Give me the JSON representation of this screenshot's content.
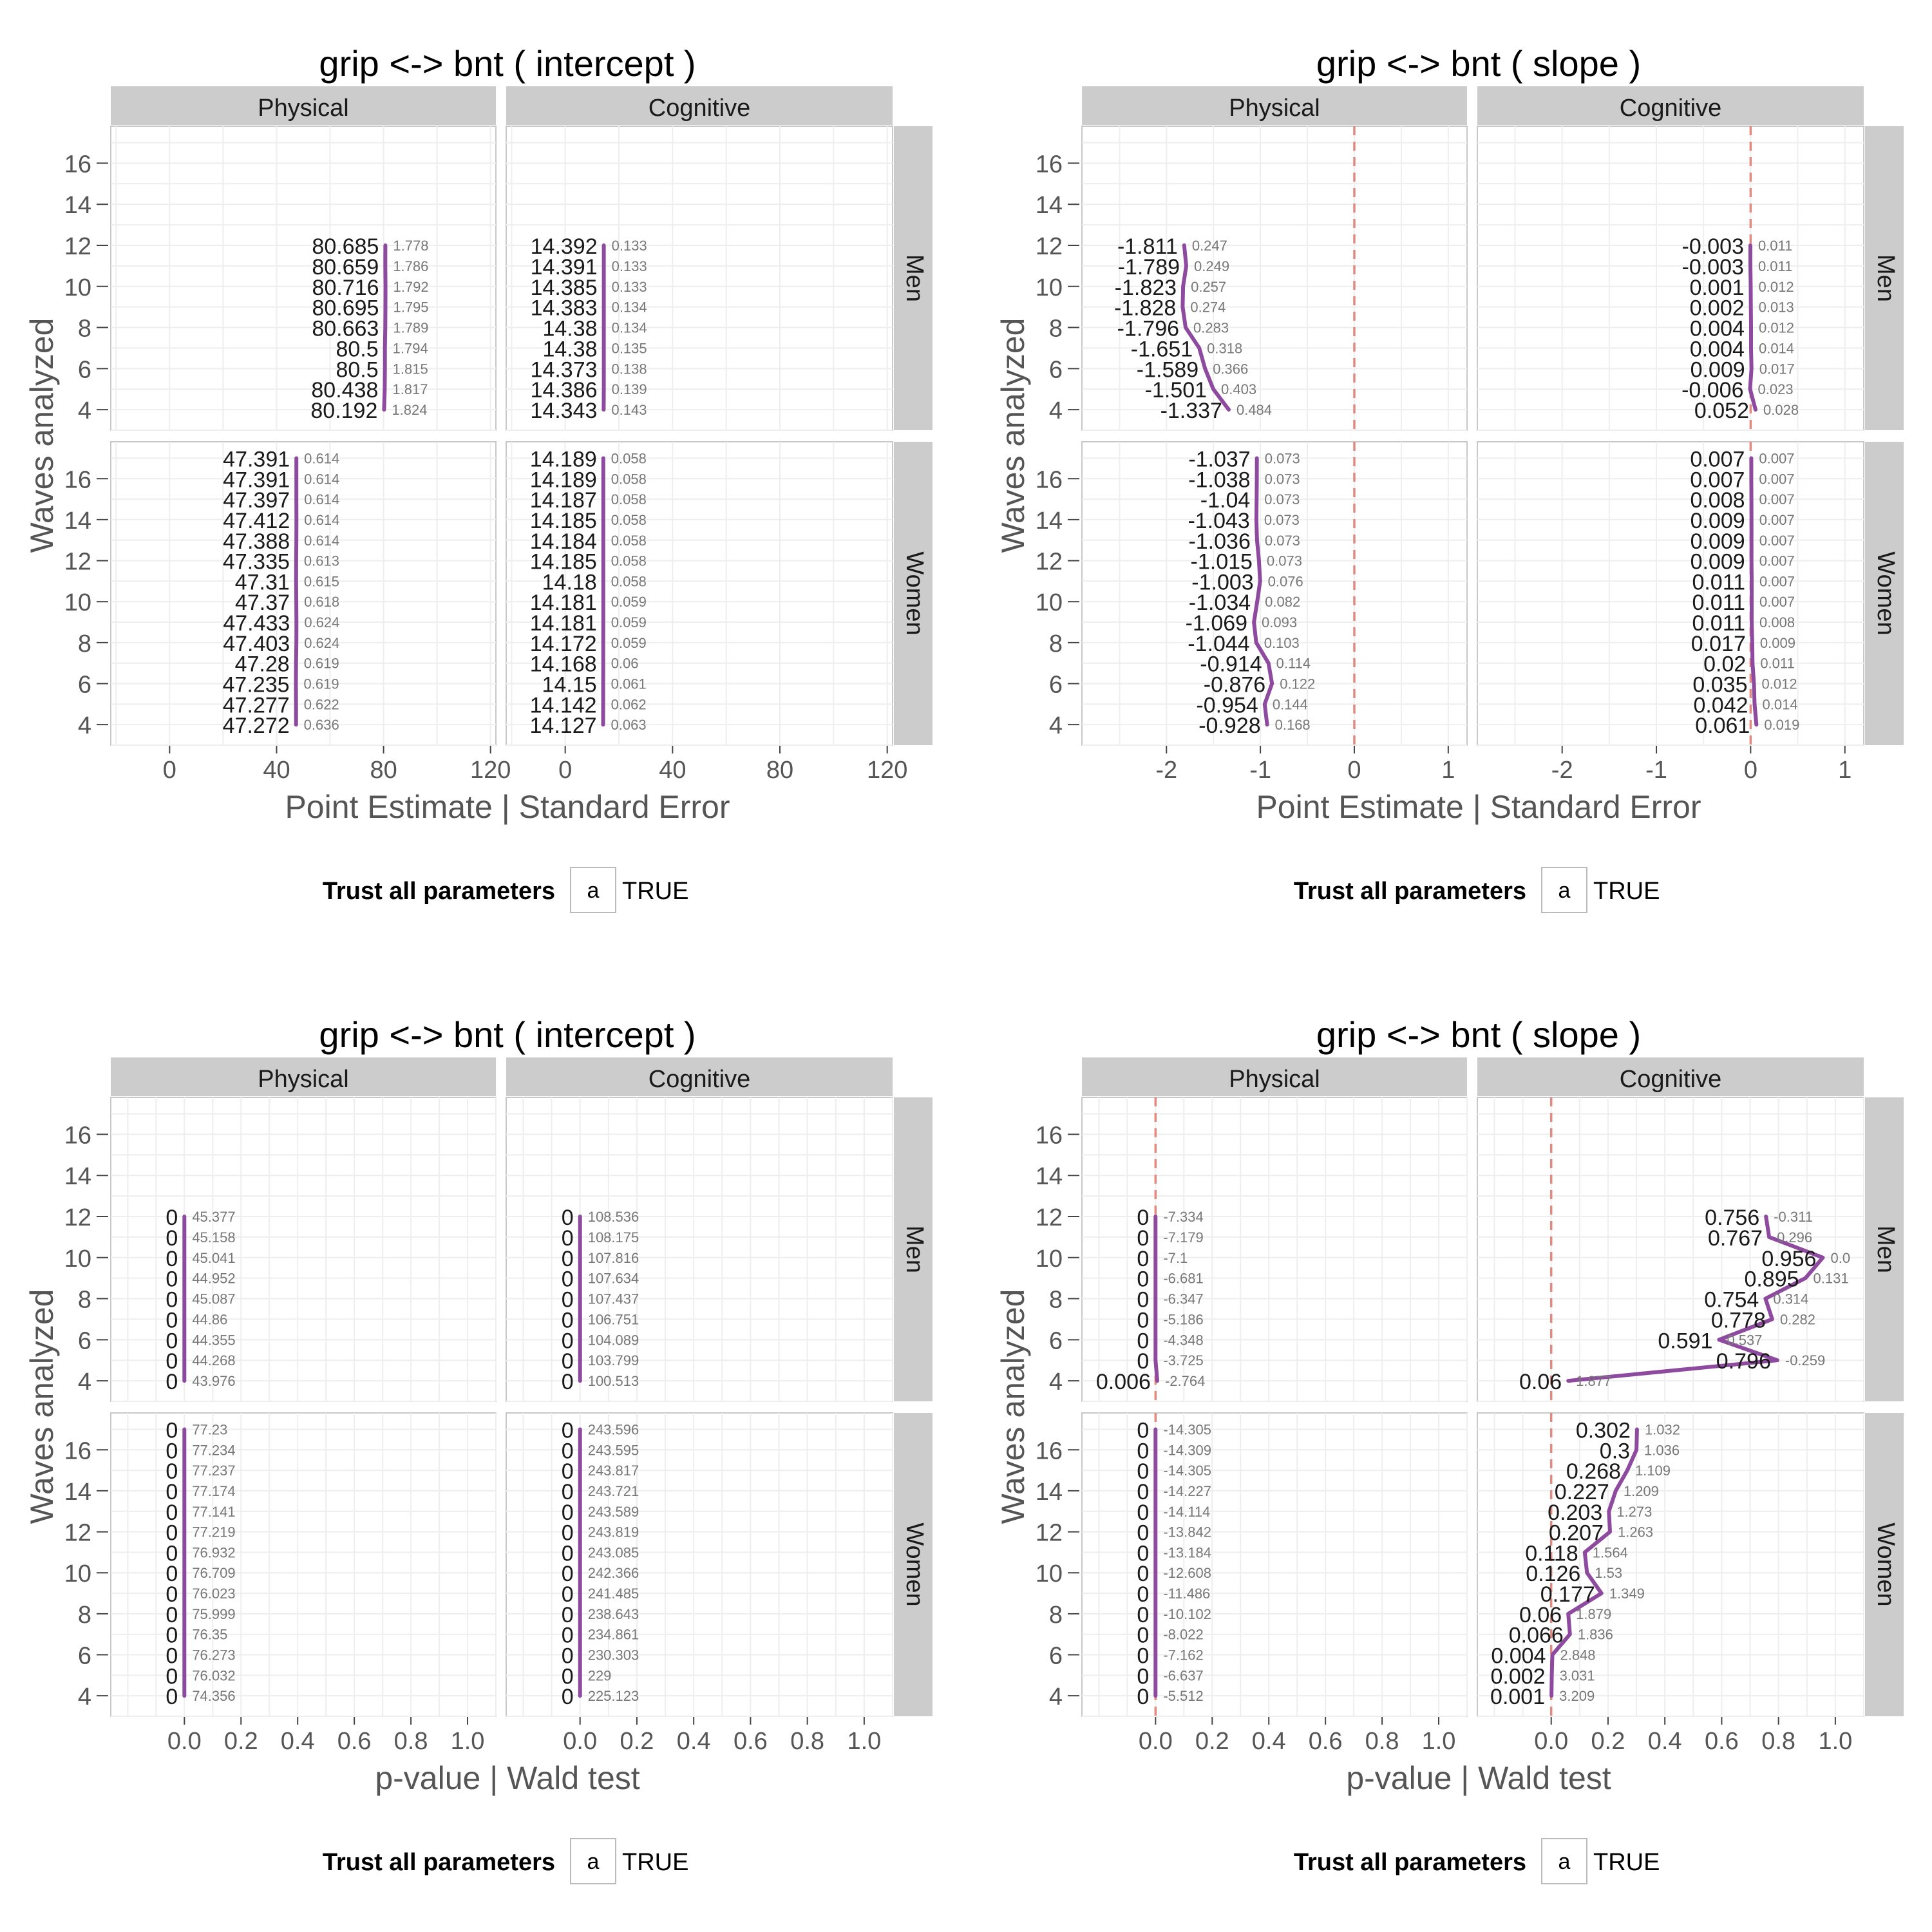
{
  "y_axis_label": "Waves analyzed",
  "legend": {
    "title": "Trust all parameters",
    "key_glyph": "a",
    "label": "TRUE"
  },
  "colors": {
    "line": "#8e4a9e",
    "strip": "#cccccc",
    "panel_border": "#c8c8c8",
    "grid": "#eeeeee",
    "ref_line": "#e08a80",
    "axis_text": "#555555",
    "se_text": "#777777"
  },
  "y_ticks": [
    4,
    6,
    8,
    10,
    12,
    14,
    16
  ],
  "y_range": [
    3,
    17.8
  ],
  "row_labels": [
    "Men",
    "Women"
  ],
  "col_labels": [
    "Physical",
    "Cognitive"
  ],
  "chart_data": [
    {
      "type": "line",
      "title": "grip <-> bnt ( intercept )",
      "xlabel": "Point Estimate | Standard Error",
      "x_range": [
        -22,
        122
      ],
      "x_ticks": [
        0,
        40,
        80,
        120
      ],
      "x_tick_labels": [
        "0",
        "40",
        "80",
        "120"
      ],
      "ref_line": null,
      "panels": [
        {
          "row": "Men",
          "col": "Physical",
          "waves": [
            12,
            11,
            10,
            9,
            8,
            7,
            6,
            5,
            4
          ],
          "values": [
            80.685,
            80.659,
            80.716,
            80.695,
            80.663,
            80.5,
            80.5,
            80.438,
            80.192
          ],
          "value_labels": [
            "80.685",
            "80.659",
            "80.716",
            "80.695",
            "80.663",
            "80.5",
            "80.5",
            "80.438",
            "80.192"
          ],
          "secondary_labels": [
            "1.778",
            "1.786",
            "1.792",
            "1.795",
            "1.789",
            "1.794",
            "1.815",
            "1.817",
            "1.824"
          ]
        },
        {
          "row": "Men",
          "col": "Cognitive",
          "waves": [
            12,
            11,
            10,
            9,
            8,
            7,
            6,
            5,
            4
          ],
          "values": [
            14.392,
            14.391,
            14.385,
            14.383,
            14.38,
            14.38,
            14.373,
            14.386,
            14.343
          ],
          "value_labels": [
            "14.392",
            "14.391",
            "14.385",
            "14.383",
            "14.38",
            "14.38",
            "14.373",
            "14.386",
            "14.343"
          ],
          "secondary_labels": [
            "0.133",
            "0.133",
            "0.133",
            "0.134",
            "0.134",
            "0.135",
            "0.138",
            "0.139",
            "0.143"
          ]
        },
        {
          "row": "Women",
          "col": "Physical",
          "waves": [
            17,
            16,
            15,
            14,
            13,
            12,
            11,
            10,
            9,
            8,
            7,
            6,
            5,
            4
          ],
          "values": [
            47.391,
            47.391,
            47.397,
            47.412,
            47.388,
            47.335,
            47.31,
            47.37,
            47.433,
            47.403,
            47.28,
            47.235,
            47.277,
            47.272
          ],
          "value_labels": [
            "47.391",
            "47.391",
            "47.397",
            "47.412",
            "47.388",
            "47.335",
            "47.31",
            "47.37",
            "47.433",
            "47.403",
            "47.28",
            "47.235",
            "47.277",
            "47.272"
          ],
          "secondary_labels": [
            "0.614",
            "0.614",
            "0.614",
            "0.614",
            "0.614",
            "0.613",
            "0.615",
            "0.618",
            "0.624",
            "0.624",
            "0.619",
            "0.619",
            "0.622",
            "0.636"
          ]
        },
        {
          "row": "Women",
          "col": "Cognitive",
          "waves": [
            17,
            16,
            15,
            14,
            13,
            12,
            11,
            10,
            9,
            8,
            7,
            6,
            5,
            4
          ],
          "values": [
            14.189,
            14.189,
            14.187,
            14.185,
            14.184,
            14.185,
            14.18,
            14.181,
            14.181,
            14.172,
            14.168,
            14.15,
            14.142,
            14.127
          ],
          "value_labels": [
            "14.189",
            "14.189",
            "14.187",
            "14.185",
            "14.184",
            "14.185",
            "14.18",
            "14.181",
            "14.181",
            "14.172",
            "14.168",
            "14.15",
            "14.142",
            "14.127"
          ],
          "secondary_labels": [
            "0.058",
            "0.058",
            "0.058",
            "0.058",
            "0.058",
            "0.058",
            "0.058",
            "0.059",
            "0.059",
            "0.059",
            "0.06",
            "0.061",
            "0.062",
            "0.063"
          ]
        }
      ]
    },
    {
      "type": "line",
      "title": "grip <-> bnt ( slope )",
      "xlabel": "Point Estimate | Standard Error",
      "x_range": [
        -2.9,
        1.2
      ],
      "x_ticks": [
        -2,
        -1,
        0,
        1
      ],
      "x_tick_labels": [
        "-2",
        "-1",
        "0",
        "1"
      ],
      "ref_line": 0,
      "panels": [
        {
          "row": "Men",
          "col": "Physical",
          "waves": [
            12,
            11,
            10,
            9,
            8,
            7,
            6,
            5,
            4
          ],
          "values": [
            -1.811,
            -1.789,
            -1.823,
            -1.828,
            -1.796,
            -1.651,
            -1.589,
            -1.501,
            -1.337
          ],
          "value_labels": [
            "-1.811",
            "-1.789",
            "-1.823",
            "-1.828",
            "-1.796",
            "-1.651",
            "-1.589",
            "-1.501",
            "-1.337"
          ],
          "secondary_labels": [
            "0.247",
            "0.249",
            "0.257",
            "0.274",
            "0.283",
            "0.318",
            "0.366",
            "0.403",
            "0.484"
          ]
        },
        {
          "row": "Men",
          "col": "Cognitive",
          "waves": [
            12,
            11,
            10,
            9,
            8,
            7,
            6,
            5,
            4
          ],
          "values": [
            -0.003,
            -0.003,
            0.001,
            0.002,
            0.004,
            0.004,
            0.009,
            -0.006,
            0.052
          ],
          "value_labels": [
            "-0.003",
            "-0.003",
            "0.001",
            "0.002",
            "0.004",
            "0.004",
            "0.009",
            "-0.006",
            "0.052"
          ],
          "secondary_labels": [
            "0.011",
            "0.011",
            "0.012",
            "0.013",
            "0.012",
            "0.014",
            "0.017",
            "0.023",
            "0.028"
          ]
        },
        {
          "row": "Women",
          "col": "Physical",
          "waves": [
            17,
            16,
            15,
            14,
            13,
            12,
            11,
            10,
            9,
            8,
            7,
            6,
            5,
            4
          ],
          "values": [
            -1.037,
            -1.038,
            -1.04,
            -1.043,
            -1.036,
            -1.015,
            -1.003,
            -1.034,
            -1.069,
            -1.044,
            -0.914,
            -0.876,
            -0.954,
            -0.928
          ],
          "value_labels": [
            "-1.037",
            "-1.038",
            "-1.04",
            "-1.043",
            "-1.036",
            "-1.015",
            "-1.003",
            "-1.034",
            "-1.069",
            "-1.044",
            "-0.914",
            "-0.876",
            "-0.954",
            "-0.928"
          ],
          "secondary_labels": [
            "0.073",
            "0.073",
            "0.073",
            "0.073",
            "0.073",
            "0.073",
            "0.076",
            "0.082",
            "0.093",
            "0.103",
            "0.114",
            "0.122",
            "0.144",
            "0.168"
          ]
        },
        {
          "row": "Women",
          "col": "Cognitive",
          "waves": [
            17,
            16,
            15,
            14,
            13,
            12,
            11,
            10,
            9,
            8,
            7,
            6,
            5,
            4
          ],
          "values": [
            0.007,
            0.007,
            0.008,
            0.009,
            0.009,
            0.009,
            0.011,
            0.011,
            0.011,
            0.017,
            0.02,
            0.035,
            0.042,
            0.061
          ],
          "value_labels": [
            "0.007",
            "0.007",
            "0.008",
            "0.009",
            "0.009",
            "0.009",
            "0.011",
            "0.011",
            "0.011",
            "0.017",
            "0.02",
            "0.035",
            "0.042",
            "0.061"
          ],
          "secondary_labels": [
            "0.007",
            "0.007",
            "0.007",
            "0.007",
            "0.007",
            "0.007",
            "0.007",
            "0.007",
            "0.008",
            "0.009",
            "0.011",
            "0.012",
            "0.014",
            "0.019"
          ]
        }
      ]
    },
    {
      "type": "line",
      "title": "grip <-> bnt ( intercept )",
      "xlabel": "p-value | Wald test",
      "x_range": [
        -0.26,
        1.1
      ],
      "x_ticks": [
        0,
        0.2,
        0.4,
        0.6,
        0.8,
        1.0
      ],
      "x_tick_labels": [
        "0.0",
        "0.2",
        "0.4",
        "0.6",
        "0.8",
        "1.0"
      ],
      "ref_line": null,
      "panels": [
        {
          "row": "Men",
          "col": "Physical",
          "waves": [
            12,
            11,
            10,
            9,
            8,
            7,
            6,
            5,
            4
          ],
          "values": [
            0,
            0,
            0,
            0,
            0,
            0,
            0,
            0,
            0
          ],
          "value_labels": [
            "0",
            "0",
            "0",
            "0",
            "0",
            "0",
            "0",
            "0",
            "0"
          ],
          "secondary_labels": [
            "45.377",
            "45.158",
            "45.041",
            "44.952",
            "45.087",
            "44.86",
            "44.355",
            "44.268",
            "43.976"
          ]
        },
        {
          "row": "Men",
          "col": "Cognitive",
          "waves": [
            12,
            11,
            10,
            9,
            8,
            7,
            6,
            5,
            4
          ],
          "values": [
            0,
            0,
            0,
            0,
            0,
            0,
            0,
            0,
            0
          ],
          "value_labels": [
            "0",
            "0",
            "0",
            "0",
            "0",
            "0",
            "0",
            "0",
            "0"
          ],
          "secondary_labels": [
            "108.536",
            "108.175",
            "107.816",
            "107.634",
            "107.437",
            "106.751",
            "104.089",
            "103.799",
            "100.513"
          ]
        },
        {
          "row": "Women",
          "col": "Physical",
          "waves": [
            17,
            16,
            15,
            14,
            13,
            12,
            11,
            10,
            9,
            8,
            7,
            6,
            5,
            4
          ],
          "values": [
            0,
            0,
            0,
            0,
            0,
            0,
            0,
            0,
            0,
            0,
            0,
            0,
            0,
            0
          ],
          "value_labels": [
            "0",
            "0",
            "0",
            "0",
            "0",
            "0",
            "0",
            "0",
            "0",
            "0",
            "0",
            "0",
            "0",
            "0"
          ],
          "secondary_labels": [
            "77.23",
            "77.234",
            "77.237",
            "77.174",
            "77.141",
            "77.219",
            "76.932",
            "76.709",
            "76.023",
            "75.999",
            "76.35",
            "76.273",
            "76.032",
            "74.356"
          ]
        },
        {
          "row": "Women",
          "col": "Cognitive",
          "waves": [
            17,
            16,
            15,
            14,
            13,
            12,
            11,
            10,
            9,
            8,
            7,
            6,
            5,
            4
          ],
          "values": [
            0,
            0,
            0,
            0,
            0,
            0,
            0,
            0,
            0,
            0,
            0,
            0,
            0,
            0
          ],
          "value_labels": [
            "0",
            "0",
            "0",
            "0",
            "0",
            "0",
            "0",
            "0",
            "0",
            "0",
            "0",
            "0",
            "0",
            "0"
          ],
          "secondary_labels": [
            "243.596",
            "243.595",
            "243.817",
            "243.721",
            "243.589",
            "243.819",
            "243.085",
            "242.366",
            "241.485",
            "238.643",
            "234.861",
            "230.303",
            "229",
            "225.123"
          ]
        }
      ]
    },
    {
      "type": "line",
      "title": "grip <-> bnt ( slope )",
      "xlabel": "p-value | Wald test",
      "x_range": [
        -0.26,
        1.1
      ],
      "x_ticks": [
        0,
        0.2,
        0.4,
        0.6,
        0.8,
        1.0
      ],
      "x_tick_labels": [
        "0.0",
        "0.2",
        "0.4",
        "0.6",
        "0.8",
        "1.0"
      ],
      "ref_line": 0,
      "panels": [
        {
          "row": "Men",
          "col": "Physical",
          "waves": [
            12,
            11,
            10,
            9,
            8,
            7,
            6,
            5,
            4
          ],
          "values": [
            0,
            0,
            0,
            0,
            0,
            0,
            0,
            0,
            0.006
          ],
          "value_labels": [
            "0",
            "0",
            "0",
            "0",
            "0",
            "0",
            "0",
            "0",
            "0.006"
          ],
          "secondary_labels": [
            "-7.334",
            "-7.179",
            "-7.1",
            "-6.681",
            "-6.347",
            "-5.186",
            "-4.348",
            "-3.725",
            "-2.764"
          ]
        },
        {
          "row": "Men",
          "col": "Cognitive",
          "waves": [
            12,
            11,
            10,
            9,
            8,
            7,
            6,
            5,
            4
          ],
          "values": [
            0.756,
            0.767,
            0.956,
            0.895,
            0.754,
            0.778,
            0.591,
            0.796,
            0.06
          ],
          "value_labels": [
            "0.756",
            "0.767",
            "0.956",
            "0.895",
            "0.754",
            "0.778",
            "0.591",
            "0.796",
            "0.06"
          ],
          "secondary_labels": [
            "-0.311",
            "0.296",
            "0.0",
            "0.131",
            "0.314",
            "0.282",
            "0.537",
            "-0.259",
            "1.877"
          ]
        },
        {
          "row": "Women",
          "col": "Physical",
          "waves": [
            17,
            16,
            15,
            14,
            13,
            12,
            11,
            10,
            9,
            8,
            7,
            6,
            5,
            4
          ],
          "values": [
            0,
            0,
            0,
            0,
            0,
            0,
            0,
            0,
            0,
            0,
            0,
            0,
            0,
            0
          ],
          "value_labels": [
            "0",
            "0",
            "0",
            "0",
            "0",
            "0",
            "0",
            "0",
            "0",
            "0",
            "0",
            "0",
            "0",
            "0"
          ],
          "secondary_labels": [
            "-14.305",
            "-14.309",
            "-14.305",
            "-14.227",
            "-14.114",
            "-13.842",
            "-13.184",
            "-12.608",
            "-11.486",
            "-10.102",
            "-8.022",
            "-7.162",
            "-6.637",
            "-5.512"
          ]
        },
        {
          "row": "Women",
          "col": "Cognitive",
          "waves": [
            17,
            16,
            15,
            14,
            13,
            12,
            11,
            10,
            9,
            8,
            7,
            6,
            5,
            4
          ],
          "values": [
            0.302,
            0.3,
            0.268,
            0.227,
            0.203,
            0.207,
            0.118,
            0.126,
            0.177,
            0.06,
            0.066,
            0.004,
            0.002,
            0.001
          ],
          "value_labels": [
            "0.302",
            "0.3",
            "0.268",
            "0.227",
            "0.203",
            "0.207",
            "0.118",
            "0.126",
            "0.177",
            "0.06",
            "0.066",
            "0.004",
            "0.002",
            "0.001"
          ],
          "secondary_labels": [
            "1.032",
            "1.036",
            "1.109",
            "1.209",
            "1.273",
            "1.263",
            "1.564",
            "1.53",
            "1.349",
            "1.879",
            "1.836",
            "2.848",
            "3.031",
            "3.209"
          ]
        }
      ]
    }
  ]
}
